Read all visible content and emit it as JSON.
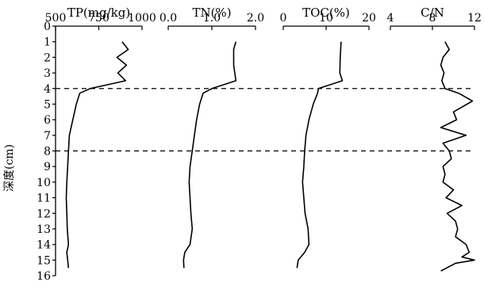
{
  "chart_data": {
    "type": "line",
    "orientation": "depth-profile",
    "y_axis": {
      "label": "深度(cm)",
      "range": [
        0,
        16
      ],
      "ticks": [
        0,
        1,
        2,
        3,
        4,
        5,
        6,
        7,
        8,
        9,
        10,
        11,
        12,
        13,
        14,
        15,
        16
      ],
      "inverted": true
    },
    "reference_depths": [
      4,
      8
    ],
    "panels": [
      {
        "title": "TP(mg/kg)",
        "xlim": [
          500,
          1000
        ],
        "ticks": [
          500,
          750,
          1000
        ],
        "tick_labels": [
          "500",
          "750",
          "1000"
        ],
        "points": [
          [
            885,
            1
          ],
          [
            920,
            1.5
          ],
          [
            855,
            2
          ],
          [
            910,
            2.5
          ],
          [
            860,
            3
          ],
          [
            905,
            3.5
          ],
          [
            700,
            4
          ],
          [
            640,
            4.3
          ],
          [
            620,
            5
          ],
          [
            600,
            6
          ],
          [
            580,
            7
          ],
          [
            575,
            8
          ],
          [
            570,
            9
          ],
          [
            565,
            10
          ],
          [
            562,
            11
          ],
          [
            565,
            12
          ],
          [
            568,
            13
          ],
          [
            575,
            14
          ],
          [
            565,
            14.5
          ],
          [
            570,
            15
          ],
          [
            575,
            15.5
          ]
        ]
      },
      {
        "title": "TN(%)",
        "xlim": [
          0.0,
          2.0
        ],
        "ticks": [
          0.0,
          1.0,
          2.0
        ],
        "tick_labels": [
          "0.0",
          "1.0",
          "2.0"
        ],
        "points": [
          [
            1.55,
            1
          ],
          [
            1.5,
            1.5
          ],
          [
            1.5,
            2.5
          ],
          [
            1.55,
            3.5
          ],
          [
            1.0,
            4
          ],
          [
            0.8,
            4.3
          ],
          [
            0.72,
            5
          ],
          [
            0.65,
            6
          ],
          [
            0.6,
            7
          ],
          [
            0.55,
            8
          ],
          [
            0.5,
            9
          ],
          [
            0.48,
            10
          ],
          [
            0.5,
            11
          ],
          [
            0.52,
            12
          ],
          [
            0.55,
            13
          ],
          [
            0.5,
            14
          ],
          [
            0.38,
            14.5
          ],
          [
            0.35,
            15
          ],
          [
            0.36,
            15.5
          ]
        ]
      },
      {
        "title": "TOC(%)",
        "xlim": [
          0,
          20
        ],
        "ticks": [
          0,
          10,
          20
        ],
        "tick_labels": [
          "0",
          "10",
          "20"
        ],
        "points": [
          [
            13.5,
            1
          ],
          [
            13.3,
            2
          ],
          [
            13.2,
            3
          ],
          [
            13.8,
            3.5
          ],
          [
            8.2,
            4
          ],
          [
            8.0,
            4.3
          ],
          [
            7.0,
            5
          ],
          [
            6.0,
            6
          ],
          [
            5.3,
            7
          ],
          [
            5.0,
            8
          ],
          [
            4.8,
            9
          ],
          [
            4.5,
            10
          ],
          [
            4.8,
            11
          ],
          [
            5.1,
            12
          ],
          [
            5.8,
            13
          ],
          [
            6.0,
            14
          ],
          [
            5.0,
            14.5
          ],
          [
            3.5,
            15
          ],
          [
            3.2,
            15.5
          ]
        ]
      },
      {
        "title": "C/N",
        "xlim": [
          4,
          12
        ],
        "ticks": [
          4,
          8,
          12
        ],
        "tick_labels": [
          "4",
          "8",
          "12"
        ],
        "points": [
          [
            9.2,
            1
          ],
          [
            9.6,
            1.5
          ],
          [
            9.0,
            2
          ],
          [
            8.8,
            2.5
          ],
          [
            9.1,
            3
          ],
          [
            8.9,
            3.5
          ],
          [
            9.2,
            4
          ],
          [
            10.5,
            4.3
          ],
          [
            11.8,
            4.8
          ],
          [
            10.0,
            5.5
          ],
          [
            10.3,
            6
          ],
          [
            8.8,
            6.5
          ],
          [
            11.2,
            7
          ],
          [
            9.0,
            7.5
          ],
          [
            9.6,
            8
          ],
          [
            9.8,
            8.5
          ],
          [
            9.0,
            9
          ],
          [
            9.2,
            9.5
          ],
          [
            9.0,
            10
          ],
          [
            10.0,
            10.5
          ],
          [
            9.3,
            11
          ],
          [
            10.8,
            11.5
          ],
          [
            9.4,
            12
          ],
          [
            10.2,
            12.5
          ],
          [
            10.4,
            13
          ],
          [
            10.2,
            13.5
          ],
          [
            11.2,
            14
          ],
          [
            11.5,
            14.5
          ],
          [
            10.8,
            14.8
          ],
          [
            12.0,
            15
          ],
          [
            10.2,
            15.2
          ],
          [
            8.8,
            15.7
          ]
        ]
      }
    ]
  }
}
